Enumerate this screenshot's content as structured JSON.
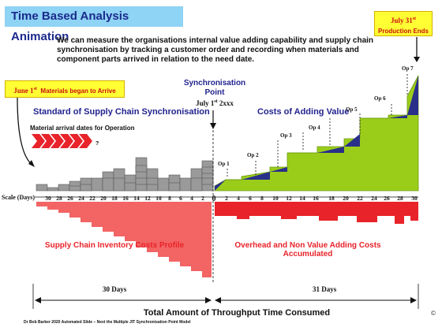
{
  "title": "Time Based Analysis Animation",
  "intro": "We can measure the organisations internal value adding capability and supply chain synchronisation by tracking a customer order and recording when materials and component parts arrived in relation to the need date.",
  "june_box": {
    "date": "June 1",
    "sup": "st",
    "text": "Materials began to Arrive"
  },
  "july31_box": {
    "date": "July 31",
    "sup": "st",
    "text": "Production Ends"
  },
  "sync_point": {
    "label": "Synchronisation Point",
    "date": "July 1",
    "sup": "st",
    "year": "2xxx"
  },
  "left_heading": "Standard of Supply Chain Synchronisation",
  "right_heading": "Costs of Adding Value",
  "material_label": "Material arrival dates for Operation",
  "question_mark": "?",
  "scale_label": "Scale (Days)",
  "left_scale": [
    "30",
    "28",
    "26",
    "24",
    "22",
    "20",
    "18",
    "16",
    "14",
    "12",
    "10",
    "8",
    "6",
    "4",
    "2"
  ],
  "zero": "0",
  "right_scale": [
    "2",
    "4",
    "6",
    "8",
    "10",
    "12",
    "14",
    "16",
    "18",
    "20",
    "22",
    "24",
    "26",
    "28",
    "30"
  ],
  "ops": [
    "Op 1",
    "Op 2",
    "Op 3",
    "Op 4",
    "Op 5",
    "Op 6",
    "Op 7"
  ],
  "left_cost_label": "Supply Chain Inventory Costs Profile",
  "right_cost_label": "Overhead and Non Value Adding Costs Accumulated",
  "left_days": "30 Days",
  "right_days": "31 Days",
  "total_label": "Total Amount of Throughput Time Consumed",
  "footer": "Dr Bob Barker 2020 Automated Slide – Next the Multiple JIT Synchronisation Point Model",
  "copyright": "©",
  "colors": {
    "title_bg": "#8fd3f5",
    "green": "#9acd1a",
    "blue": "#2a2f8a",
    "red": "#e8232a",
    "pink": "#f25c5c",
    "grey": "#9a9a9a",
    "yellow": "#ffff33"
  }
}
